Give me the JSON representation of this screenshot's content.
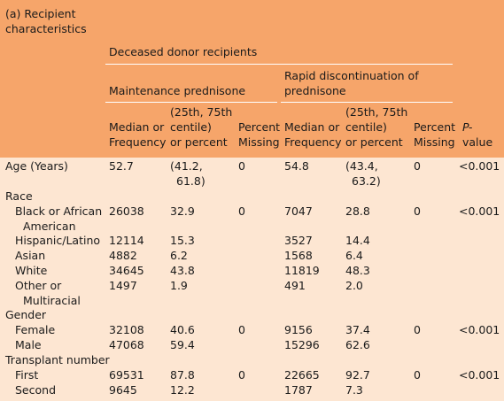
{
  "table": {
    "caption_line1": "(a) Recipient",
    "caption_line2": "characteristics",
    "group_title": "Deceased donor recipients",
    "subgroup_left": "Maintenance prednisone",
    "subgroup_right_line1": "Rapid discontinuation of",
    "subgroup_right_line2": "prednisone",
    "col_median_line1": "Median or",
    "col_median_line2": "Frequency",
    "col_pct_line1": "(25th, 75th",
    "col_pct_line2": "centile)",
    "col_pct_line3": "or percent",
    "col_missing_line1": "Percent",
    "col_missing_line2": "Missing",
    "col_p_line1": "P-",
    "col_p_line2": "value",
    "rows": [
      {
        "label": [
          "Age (Years)"
        ],
        "m1": "52.7",
        "p1": [
          "(41.2,",
          "61.8)"
        ],
        "x1": "0",
        "m2": "54.8",
        "p2": [
          "(43.4,",
          "63.2)"
        ],
        "x2": "0",
        "pv": "<0.001"
      },
      {
        "label": [
          "Race"
        ]
      },
      {
        "label": [
          "Black or African",
          "American"
        ],
        "m1": "26038",
        "p1": [
          "32.9"
        ],
        "x1": "0",
        "m2": "7047",
        "p2": [
          "28.8"
        ],
        "x2": "0",
        "pv": "<0.001"
      },
      {
        "label": [
          "Hispanic/Latino"
        ],
        "m1": "12114",
        "p1": [
          "15.3"
        ],
        "m2": "3527",
        "p2": [
          "14.4"
        ]
      },
      {
        "label": [
          "Asian"
        ],
        "m1": "4882",
        "p1": [
          "6.2"
        ],
        "m2": "1568",
        "p2": [
          "6.4"
        ]
      },
      {
        "label": [
          "White"
        ],
        "m1": "34645",
        "p1": [
          "43.8"
        ],
        "m2": "11819",
        "p2": [
          "48.3"
        ]
      },
      {
        "label": [
          "Other or",
          "Multiracial"
        ],
        "m1": "1497",
        "p1": [
          "1.9"
        ],
        "m2": "491",
        "p2": [
          "2.0"
        ]
      },
      {
        "label": [
          "Gender"
        ]
      },
      {
        "label": [
          "Female"
        ],
        "m1": "32108",
        "p1": [
          "40.6"
        ],
        "x1": "0",
        "m2": "9156",
        "p2": [
          "37.4"
        ],
        "x2": "0",
        "pv": "<0.001"
      },
      {
        "label": [
          "Male"
        ],
        "m1": "47068",
        "p1": [
          "59.4"
        ],
        "m2": "15296",
        "p2": [
          "62.6"
        ]
      },
      {
        "label": [
          "Transplant number"
        ]
      },
      {
        "label": [
          "First"
        ],
        "m1": "69531",
        "p1": [
          "87.8"
        ],
        "x1": "0",
        "m2": "22665",
        "p2": [
          "92.7"
        ],
        "x2": "0",
        "pv": "<0.001"
      },
      {
        "label": [
          "Second"
        ],
        "m1": "9645",
        "p1": [
          "12.2"
        ],
        "m2": "1787",
        "p2": [
          "7.3"
        ]
      }
    ]
  }
}
